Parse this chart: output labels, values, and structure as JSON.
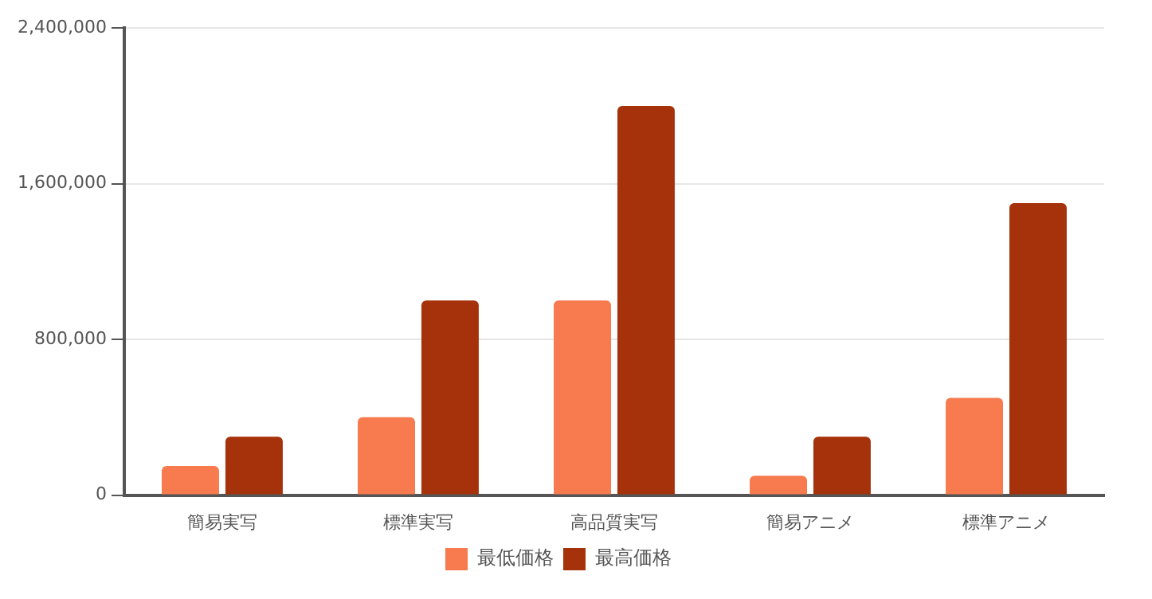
{
  "chart_data": {
    "type": "bar",
    "categories": [
      "簡易実写",
      "標準実写",
      "高品質実写",
      "簡易アニメ",
      "標準アニメ"
    ],
    "series": [
      {
        "name": "最低価格",
        "color": "#f77b4f",
        "values": [
          150000,
          400000,
          1000000,
          100000,
          500000
        ]
      },
      {
        "name": "最高価格",
        "color": "#a6320b",
        "values": [
          300000,
          1000000,
          2000000,
          300000,
          1500000
        ]
      }
    ],
    "ylim": [
      0,
      2400000
    ],
    "yticks": [
      {
        "value": 0,
        "label": "0"
      },
      {
        "value": 800000,
        "label": "800,000"
      },
      {
        "value": 1600000,
        "label": "1,600,000"
      },
      {
        "value": 2400000,
        "label": "2,400,000"
      }
    ],
    "grid": "y",
    "legend": "bottom"
  }
}
